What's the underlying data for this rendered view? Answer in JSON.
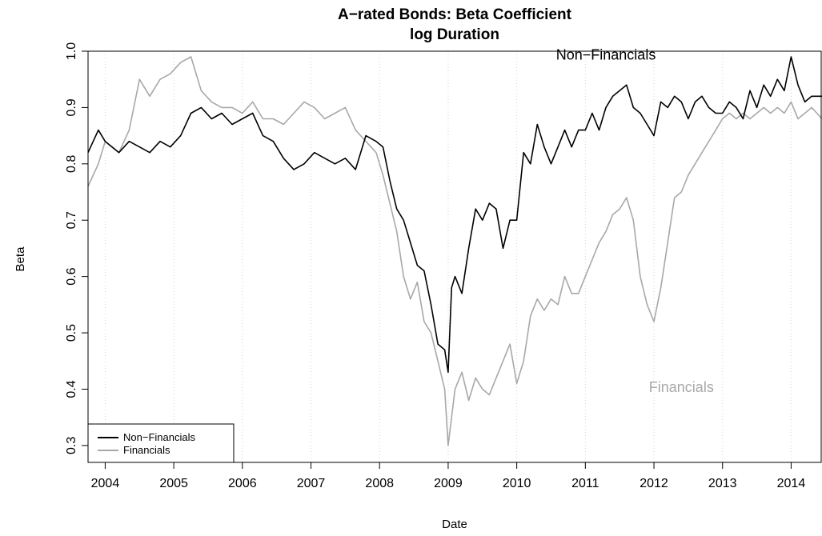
{
  "chart_data": {
    "type": "line",
    "title": "A−rated Bonds: Beta Coefficient",
    "subtitle": "log Duration",
    "xlabel": "Date",
    "ylabel": "Beta",
    "xlim": [
      2003.75,
      2014.45
    ],
    "ylim": [
      0.27,
      1.0
    ],
    "x_ticks": [
      "2004",
      "2005",
      "2006",
      "2007",
      "2008",
      "2009",
      "2010",
      "2011",
      "2012",
      "2013",
      "2014"
    ],
    "y_ticks": [
      "0.3",
      "0.4",
      "0.5",
      "0.6",
      "0.7",
      "0.8",
      "0.9",
      "1.0"
    ],
    "grid": "vertical dotted",
    "legend": {
      "position": "bottom-left",
      "entries": [
        "Non−Financials",
        "Financials"
      ]
    },
    "annotations": [
      {
        "text": "Non−Financials",
        "x": 2011.3,
        "y": 0.985,
        "color": "#000000"
      },
      {
        "text": "Financials",
        "x": 2012.4,
        "y": 0.395,
        "color": "#a8a8a8"
      }
    ],
    "series": [
      {
        "name": "Non−Financials",
        "color": "#000000",
        "x": [
          2003.75,
          2003.9,
          2004.0,
          2004.1,
          2004.2,
          2004.35,
          2004.5,
          2004.65,
          2004.8,
          2004.95,
          2005.1,
          2005.25,
          2005.4,
          2005.55,
          2005.7,
          2005.85,
          2006.0,
          2006.15,
          2006.3,
          2006.45,
          2006.6,
          2006.75,
          2006.9,
          2007.05,
          2007.2,
          2007.35,
          2007.5,
          2007.65,
          2007.8,
          2007.95,
          2008.05,
          2008.15,
          2008.25,
          2008.35,
          2008.45,
          2008.55,
          2008.65,
          2008.75,
          2008.85,
          2008.95,
          2009.0,
          2009.05,
          2009.1,
          2009.2,
          2009.3,
          2009.4,
          2009.5,
          2009.6,
          2009.7,
          2009.8,
          2009.9,
          2010.0,
          2010.1,
          2010.2,
          2010.3,
          2010.4,
          2010.5,
          2010.6,
          2010.7,
          2010.8,
          2010.9,
          2011.0,
          2011.1,
          2011.2,
          2011.3,
          2011.4,
          2011.5,
          2011.6,
          2011.7,
          2011.8,
          2011.9,
          2012.0,
          2012.1,
          2012.2,
          2012.3,
          2012.4,
          2012.5,
          2012.6,
          2012.7,
          2012.8,
          2012.9,
          2013.0,
          2013.1,
          2013.2,
          2013.3,
          2013.4,
          2013.5,
          2013.6,
          2013.7,
          2013.8,
          2013.9,
          2014.0,
          2014.1,
          2014.2,
          2014.3,
          2014.45
        ],
        "y": [
          0.82,
          0.86,
          0.84,
          0.83,
          0.82,
          0.84,
          0.83,
          0.82,
          0.84,
          0.83,
          0.85,
          0.89,
          0.9,
          0.88,
          0.89,
          0.87,
          0.88,
          0.89,
          0.85,
          0.84,
          0.81,
          0.79,
          0.8,
          0.82,
          0.81,
          0.8,
          0.81,
          0.79,
          0.85,
          0.84,
          0.83,
          0.77,
          0.72,
          0.7,
          0.66,
          0.62,
          0.61,
          0.55,
          0.48,
          0.47,
          0.43,
          0.58,
          0.6,
          0.57,
          0.65,
          0.72,
          0.7,
          0.73,
          0.72,
          0.65,
          0.7,
          0.7,
          0.82,
          0.8,
          0.87,
          0.83,
          0.8,
          0.83,
          0.86,
          0.83,
          0.86,
          0.86,
          0.89,
          0.86,
          0.9,
          0.92,
          0.93,
          0.94,
          0.9,
          0.89,
          0.87,
          0.85,
          0.91,
          0.9,
          0.92,
          0.91,
          0.88,
          0.91,
          0.92,
          0.9,
          0.89,
          0.89,
          0.91,
          0.9,
          0.88,
          0.93,
          0.9,
          0.94,
          0.92,
          0.95,
          0.93,
          0.99,
          0.94,
          0.91,
          0.92,
          0.92
        ]
      },
      {
        "name": "Financials",
        "color": "#a8a8a8",
        "x": [
          2003.75,
          2003.9,
          2004.0,
          2004.1,
          2004.2,
          2004.35,
          2004.5,
          2004.65,
          2004.8,
          2004.95,
          2005.1,
          2005.25,
          2005.4,
          2005.55,
          2005.7,
          2005.85,
          2006.0,
          2006.15,
          2006.3,
          2006.45,
          2006.6,
          2006.75,
          2006.9,
          2007.05,
          2007.2,
          2007.35,
          2007.5,
          2007.65,
          2007.8,
          2007.95,
          2008.05,
          2008.15,
          2008.25,
          2008.35,
          2008.45,
          2008.55,
          2008.65,
          2008.75,
          2008.85,
          2008.95,
          2009.0,
          2009.05,
          2009.1,
          2009.2,
          2009.3,
          2009.4,
          2009.5,
          2009.6,
          2009.7,
          2009.8,
          2009.9,
          2010.0,
          2010.1,
          2010.2,
          2010.3,
          2010.4,
          2010.5,
          2010.6,
          2010.7,
          2010.8,
          2010.9,
          2011.0,
          2011.1,
          2011.2,
          2011.3,
          2011.4,
          2011.5,
          2011.6,
          2011.7,
          2011.8,
          2011.9,
          2012.0,
          2012.1,
          2012.2,
          2012.3,
          2012.4,
          2012.5,
          2012.6,
          2012.7,
          2012.8,
          2012.9,
          2013.0,
          2013.1,
          2013.2,
          2013.3,
          2013.4,
          2013.5,
          2013.6,
          2013.7,
          2013.8,
          2013.9,
          2014.0,
          2014.1,
          2014.2,
          2014.3,
          2014.45
        ],
        "y": [
          0.76,
          0.8,
          0.84,
          0.83,
          0.82,
          0.86,
          0.95,
          0.92,
          0.95,
          0.96,
          0.98,
          0.99,
          0.93,
          0.91,
          0.9,
          0.9,
          0.89,
          0.91,
          0.88,
          0.88,
          0.87,
          0.89,
          0.91,
          0.9,
          0.88,
          0.89,
          0.9,
          0.86,
          0.84,
          0.82,
          0.78,
          0.73,
          0.68,
          0.6,
          0.56,
          0.59,
          0.52,
          0.5,
          0.45,
          0.4,
          0.3,
          0.35,
          0.4,
          0.43,
          0.38,
          0.42,
          0.4,
          0.39,
          0.42,
          0.45,
          0.48,
          0.41,
          0.45,
          0.53,
          0.56,
          0.54,
          0.56,
          0.55,
          0.6,
          0.57,
          0.57,
          0.6,
          0.63,
          0.66,
          0.68,
          0.71,
          0.72,
          0.74,
          0.7,
          0.6,
          0.55,
          0.52,
          0.58,
          0.66,
          0.74,
          0.75,
          0.78,
          0.8,
          0.82,
          0.84,
          0.86,
          0.88,
          0.89,
          0.88,
          0.89,
          0.88,
          0.89,
          0.9,
          0.89,
          0.9,
          0.89,
          0.91,
          0.88,
          0.89,
          0.9,
          0.88
        ]
      }
    ]
  }
}
